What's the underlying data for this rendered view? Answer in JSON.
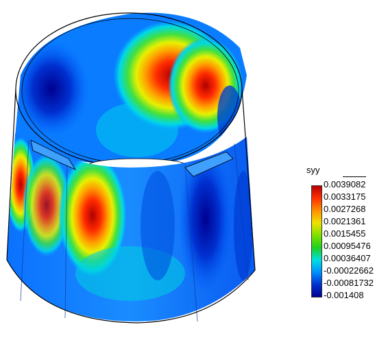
{
  "legend": {
    "variable": "syy",
    "values": [
      "0.0039082",
      "0.0033175",
      "0.0027268",
      "0.0021361",
      "0.0015455",
      "0.00095476",
      "0.00036407",
      "-0.00022662",
      "-0.00081732",
      "-0.001408"
    ],
    "colors": [
      "#b80000",
      "#ff3000",
      "#ff9000",
      "#f0e000",
      "#80e000",
      "#20d020",
      "#00e0e0",
      "#0090ff",
      "#0030d0",
      "#00008f"
    ]
  }
}
